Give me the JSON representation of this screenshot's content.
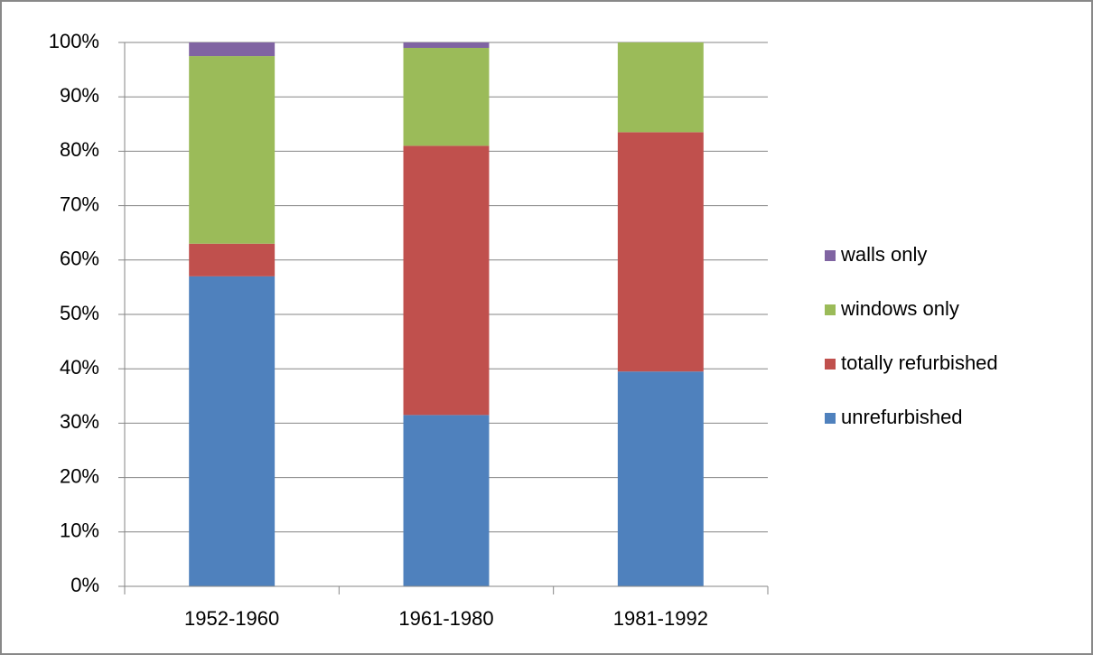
{
  "chart_data": {
    "type": "stacked_bar",
    "categories": [
      "1952-1960",
      "1961-1980",
      "1981-1992"
    ],
    "series": [
      {
        "name": "unrefurbished",
        "color": "#4f81bd",
        "values": [
          57,
          31.5,
          39.5
        ]
      },
      {
        "name": "totally refurbished",
        "color": "#c0504d",
        "values": [
          6,
          49.5,
          44
        ]
      },
      {
        "name": "windows only",
        "color": "#9bbb59",
        "values": [
          34.5,
          18,
          16.5
        ]
      },
      {
        "name": "walls only",
        "color": "#8064a2",
        "values": [
          2.5,
          1,
          0
        ]
      }
    ],
    "ylim": [
      0,
      100
    ],
    "yticks": [
      {
        "value": 0,
        "label": "0%"
      },
      {
        "value": 10,
        "label": "10%"
      },
      {
        "value": 20,
        "label": "20%"
      },
      {
        "value": 30,
        "label": "30%"
      },
      {
        "value": 40,
        "label": "40%"
      },
      {
        "value": 50,
        "label": "50%"
      },
      {
        "value": 60,
        "label": "60%"
      },
      {
        "value": 70,
        "label": "70%"
      },
      {
        "value": 80,
        "label": "80%"
      },
      {
        "value": 90,
        "label": "90%"
      },
      {
        "value": 100,
        "label": "100%"
      }
    ],
    "grid": true,
    "legend": "right"
  }
}
